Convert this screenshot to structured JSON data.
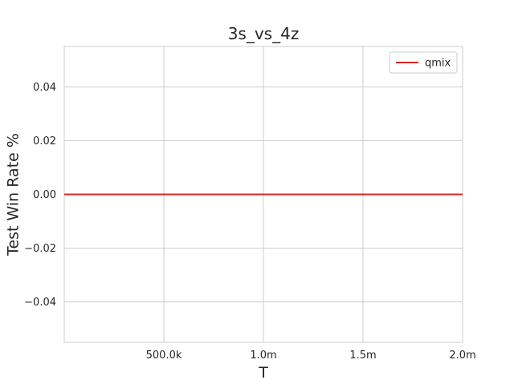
{
  "chart_data": {
    "type": "line",
    "title": "3s_vs_4z",
    "xlabel": "T",
    "ylabel": "Test Win Rate %",
    "xlim": [
      0,
      2000000
    ],
    "ylim": [
      -0.055,
      0.055
    ],
    "x_ticks": [
      {
        "value": 500000,
        "label": "500.0k"
      },
      {
        "value": 1000000,
        "label": "1.0m"
      },
      {
        "value": 1500000,
        "label": "1.5m"
      },
      {
        "value": 2000000,
        "label": "2.0m"
      }
    ],
    "y_ticks": [
      {
        "value": -0.04,
        "label": "−0.04"
      },
      {
        "value": -0.02,
        "label": "−0.02"
      },
      {
        "value": 0.0,
        "label": "0.00"
      },
      {
        "value": 0.02,
        "label": "0.02"
      },
      {
        "value": 0.04,
        "label": "0.04"
      }
    ],
    "grid": true,
    "legend": {
      "placement": "top-right"
    },
    "series": [
      {
        "name": "qmix",
        "color": "#d62728",
        "x": [
          0,
          2000000
        ],
        "y": [
          0.0,
          0.0
        ]
      }
    ]
  }
}
